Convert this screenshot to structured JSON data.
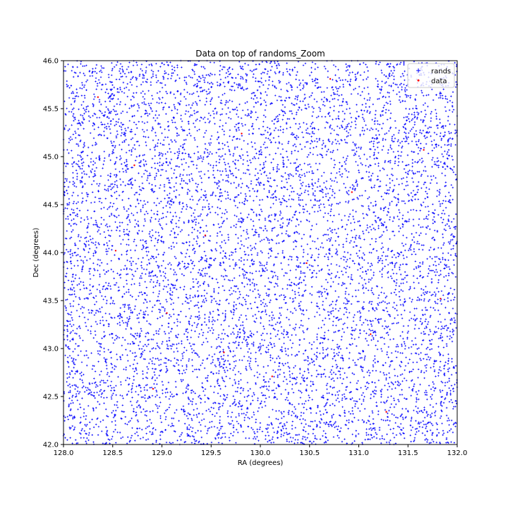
{
  "chart_data": {
    "type": "scatter",
    "title": "Data on top of randoms_Zoom",
    "xlabel": "RA (degrees)",
    "ylabel": "Dec (degrees)",
    "xlim": [
      128.0,
      132.0
    ],
    "ylim": [
      42.0,
      46.0
    ],
    "xticks": [
      "128.0",
      "128.5",
      "129.0",
      "129.5",
      "130.0",
      "130.5",
      "131.0",
      "131.5",
      "132.0"
    ],
    "yticks": [
      "42.0",
      "42.5",
      "43.0",
      "43.5",
      "44.0",
      "44.5",
      "45.0",
      "45.5",
      "46.0"
    ],
    "grid": false,
    "legend_position": "top-right",
    "series": [
      {
        "name": "rands",
        "color": "#0000ff",
        "marker": "plus",
        "distribution": "uniform",
        "approx_count": 22000
      },
      {
        "name": "data",
        "color": "#ff0000",
        "marker": "point",
        "points": [
          [
            128.35,
            45.62
          ],
          [
            128.72,
            44.91
          ],
          [
            129.05,
            43.37
          ],
          [
            129.44,
            44.18
          ],
          [
            129.81,
            45.24
          ],
          [
            130.12,
            42.71
          ],
          [
            130.47,
            43.89
          ],
          [
            130.93,
            44.63
          ],
          [
            131.28,
            42.34
          ],
          [
            131.66,
            45.07
          ],
          [
            131.83,
            43.52
          ],
          [
            128.91,
            42.58
          ],
          [
            129.63,
            42.96
          ],
          [
            130.71,
            45.81
          ],
          [
            131.12,
            43.15
          ],
          [
            128.53,
            44.02
          ]
        ]
      }
    ]
  }
}
